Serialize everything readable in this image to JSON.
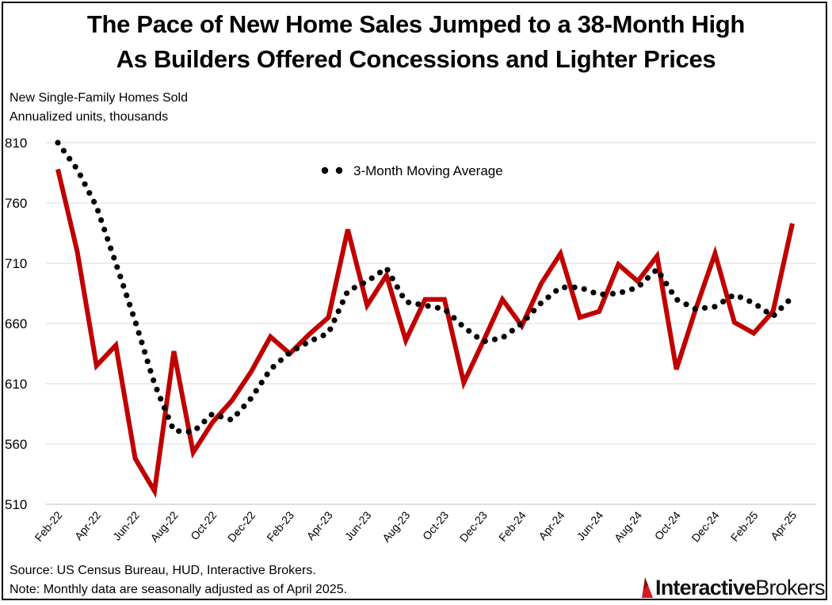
{
  "title_line1": "The Pace of New Home Sales Jumped to a 38-Month High",
  "title_line2": "As Builders Offered Concessions and Lighter Prices",
  "y_label_line1": "New Single-Family Homes Sold",
  "y_label_line2": "Annualized units, thousands",
  "source_line": "Source: US Census Bureau, HUD, Interactive Brokers.",
  "note_line": "Note: Monthly data are seasonally adjusted as of April 2025.",
  "logo": {
    "bold_text": "Interactive",
    "regular_text": "Brokers",
    "brand_color": "#D71920"
  },
  "chart_data": {
    "type": "line",
    "title": "The Pace of New Home Sales Jumped to a 38-Month High As Builders Offered Concessions and Lighter Prices",
    "ylabel": "New Single-Family Homes Sold, Annualized units, thousands",
    "xlabel": "",
    "ylim": [
      510,
      810
    ],
    "yticks": [
      510,
      560,
      610,
      660,
      710,
      760,
      810
    ],
    "grid": true,
    "legend": "top-center",
    "x": [
      "Feb-22",
      "Mar-22",
      "Apr-22",
      "May-22",
      "Jun-22",
      "Jul-22",
      "Aug-22",
      "Sep-22",
      "Oct-22",
      "Nov-22",
      "Dec-22",
      "Jan-23",
      "Feb-23",
      "Mar-23",
      "Apr-23",
      "May-23",
      "Jun-23",
      "Jul-23",
      "Aug-23",
      "Sep-23",
      "Oct-23",
      "Nov-23",
      "Dec-23",
      "Jan-24",
      "Feb-24",
      "Mar-24",
      "Apr-24",
      "May-24",
      "Jun-24",
      "Jul-24",
      "Aug-24",
      "Sep-24",
      "Oct-24",
      "Nov-24",
      "Dec-24",
      "Jan-25",
      "Feb-25",
      "Mar-25",
      "Apr-25"
    ],
    "xtick_labels": [
      "Feb-22",
      "Apr-22",
      "Jun-22",
      "Aug-22",
      "Oct-22",
      "Dec-22",
      "Feb-23",
      "Apr-23",
      "Jun-23",
      "Aug-23",
      "Oct-23",
      "Dec-23",
      "Feb-24",
      "Apr-24",
      "Jun-24",
      "Aug-24",
      "Oct-24",
      "Dec-24",
      "Feb-25",
      "Apr-25"
    ],
    "series": [
      {
        "name": "New Single-Family Homes Sold",
        "style": "solid",
        "color": "#C00000",
        "values": [
          788,
          720,
          625,
          642,
          548,
          521,
          637,
          553,
          578,
          596,
          620,
          649,
          635,
          651,
          665,
          738,
          675,
          700,
          646,
          680,
          680,
          611,
          645,
          680,
          658,
          693,
          718,
          665,
          670,
          709,
          695,
          716,
          622,
          672,
          718,
          661,
          652,
          670,
          743
        ]
      },
      {
        "name": "3-Month Moving Average",
        "style": "dotted",
        "color": "#000000",
        "values": [
          810,
          788,
          757,
          710,
          662,
          610,
          571,
          570,
          585,
          580,
          598,
          622,
          636,
          645,
          652,
          687,
          695,
          706,
          678,
          675,
          672,
          657,
          645,
          648,
          660,
          677,
          690,
          690,
          684,
          685,
          690,
          705,
          680,
          672,
          674,
          684,
          677,
          666,
          682
        ]
      }
    ]
  }
}
